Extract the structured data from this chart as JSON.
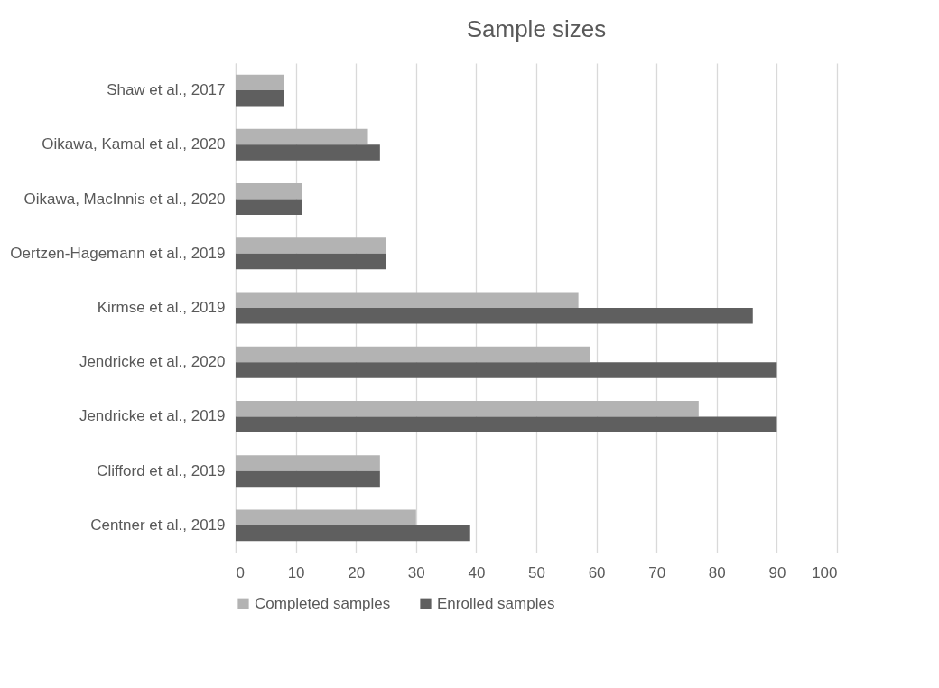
{
  "chart_data": {
    "type": "bar",
    "orientation": "horizontal",
    "title": "Sample sizes",
    "categories": [
      "Shaw et al., 2017",
      "Oikawa, Kamal et al., 2020",
      "Oikawa, MacInnis et al., 2020",
      "Oertzen-Hagemann et al., 2019",
      "Kirmse et al., 2019",
      "Jendricke et al., 2020",
      "Jendricke et al., 2019",
      "Clifford et al., 2019",
      "Centner et al., 2019"
    ],
    "series": [
      {
        "name": "Completed samples",
        "color": "#b3b3b3",
        "values": [
          8,
          22,
          11,
          25,
          57,
          59,
          77,
          24,
          30
        ]
      },
      {
        "name": "Enrolled samples",
        "color": "#5f5f5f",
        "values": [
          8,
          24,
          11,
          25,
          86,
          90,
          90,
          24,
          39
        ]
      }
    ],
    "xlim": [
      0,
      100
    ],
    "xticks": [
      0,
      10,
      20,
      30,
      40,
      50,
      60,
      70,
      80,
      90,
      100
    ],
    "grid": "x",
    "legend": "bottom"
  }
}
